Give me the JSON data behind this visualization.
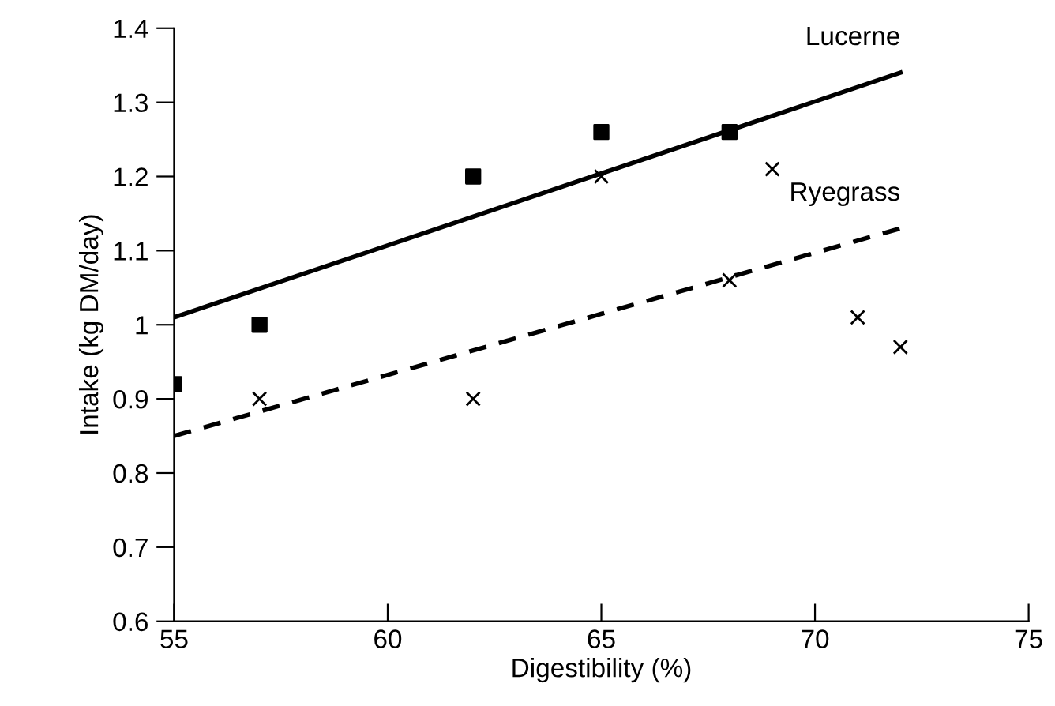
{
  "chart_data": {
    "type": "scatter",
    "xlabel": "Digestibility (%)",
    "ylabel": "Intake (kg DM/day)",
    "xlim": [
      55,
      75
    ],
    "ylim": [
      0.6,
      1.4
    ],
    "xticks": [
      55,
      60,
      65,
      70,
      75
    ],
    "yticks": [
      0.6,
      0.7,
      0.8,
      0.9,
      1,
      1.1,
      1.2,
      1.3,
      1.4
    ],
    "grid": false,
    "legend": false,
    "series": [
      {
        "marker": "square",
        "color": "#000000",
        "x": [
          55,
          57,
          62,
          65,
          68
        ],
        "values": [
          0.92,
          1.0,
          1.2,
          1.26,
          1.26
        ]
      },
      {
        "marker": "cross",
        "color": "#000000",
        "x": [
          57,
          62,
          65,
          68,
          69,
          71,
          72
        ],
        "values": [
          0.9,
          0.9,
          1.2,
          1.06,
          1.21,
          1.01,
          0.97
        ]
      },
      {
        "type": "line",
        "name": "Lucerne",
        "line_style": "solid",
        "marker": "none",
        "color": "#000000",
        "x": [
          55,
          72
        ],
        "values": [
          1.01,
          1.34
        ]
      },
      {
        "type": "line",
        "name": "Ryegrass",
        "line_style": "dashed",
        "marker": "none",
        "color": "#000000",
        "x": [
          55,
          72
        ],
        "values": [
          0.85,
          1.13
        ]
      }
    ]
  }
}
